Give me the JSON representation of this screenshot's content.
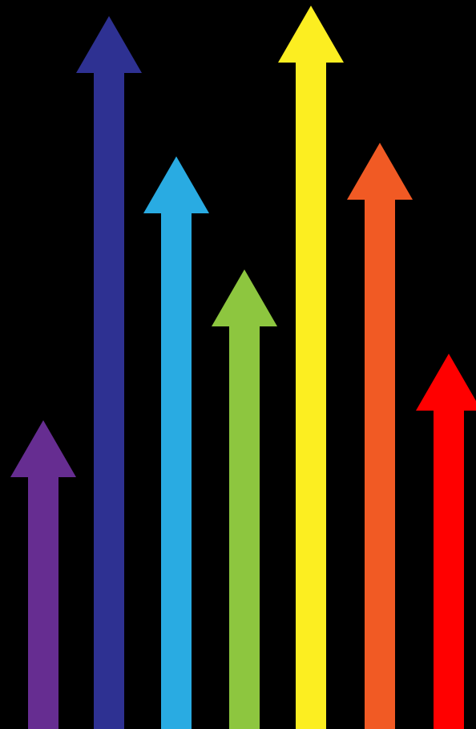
{
  "background": "#000000",
  "arrows": [
    {
      "name": "purple-arrow",
      "color": "#662d91"
    },
    {
      "name": "navy-arrow",
      "color": "#2e3192"
    },
    {
      "name": "sky-blue-arrow",
      "color": "#29abe2"
    },
    {
      "name": "green-arrow",
      "color": "#8dc63f"
    },
    {
      "name": "yellow-arrow",
      "color": "#fcee21"
    },
    {
      "name": "orange-arrow",
      "color": "#f15a24"
    },
    {
      "name": "red-arrow",
      "color": "#ff0000"
    }
  ]
}
